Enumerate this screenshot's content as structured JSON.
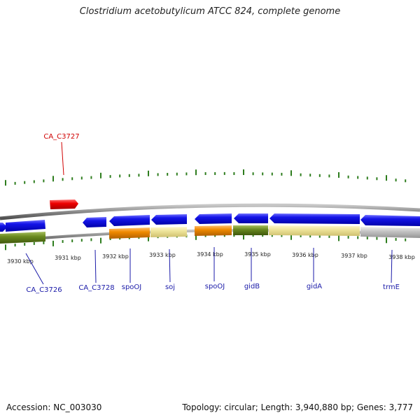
{
  "title": "Clostridium acetobutylicum ATCC 824, complete genome",
  "footer": {
    "accession": "Accession: NC_003030",
    "topology": "Topology: circular; Length: 3,940,880 bp; Genes: 3,777"
  },
  "colors": {
    "backbone": "#8c8c8c",
    "tick": "#2e7d1e",
    "blue_gene": "#1010e0",
    "red_gene": "#e00000",
    "orange": "#f08a00",
    "khaki": "#eee49a",
    "olive": "#6a8a20",
    "gray": "#c4c4c4",
    "label_blue": "#1a1aa8",
    "label_red": "#d00000"
  },
  "scale": {
    "kbp_labels": [
      "3930 kbp",
      "3931 kbp",
      "3932 kbp",
      "3933 kbp",
      "3934 kbp",
      "3935 kbp",
      "3936 kbp",
      "3937 kbp",
      "3938 kbp"
    ]
  },
  "genes": [
    {
      "name": "CA_C3726",
      "color": "label_blue"
    },
    {
      "name": "CA_C3727",
      "color": "label_red"
    },
    {
      "name": "CA_C3728",
      "color": "label_blue"
    },
    {
      "name": "spoOJ",
      "color": "label_blue"
    },
    {
      "name": "soj",
      "color": "label_blue"
    },
    {
      "name": "spoOJ",
      "color": "label_blue"
    },
    {
      "name": "gidB",
      "color": "label_blue"
    },
    {
      "name": "gidA",
      "color": "label_blue"
    },
    {
      "name": "trmE",
      "color": "label_blue"
    }
  ]
}
